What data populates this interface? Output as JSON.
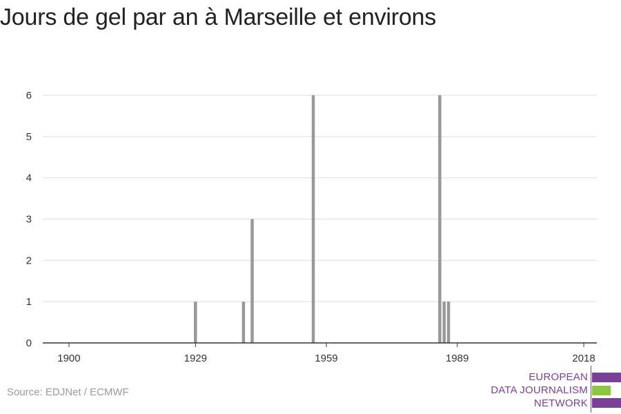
{
  "title": "Jours de gel par an à Marseille et environs",
  "source": "Source: EDJNet / ECMWF",
  "logo": {
    "line1": "EUROPEAN",
    "line2": "DATA JOURNALISM",
    "line3": "NETWORK"
  },
  "colors": {
    "bar": "#999999",
    "grid": "#dddddd",
    "axis": "#333333",
    "logo_purple": "#7a3f98",
    "logo_green": "#8cc63f"
  },
  "chart_data": {
    "type": "bar",
    "title": "Jours de gel par an à Marseille et environs",
    "xlabel": "",
    "ylabel": "",
    "xlim": [
      1894,
      2021
    ],
    "ylim": [
      0,
      6
    ],
    "x_ticks": [
      1900,
      1929,
      1959,
      1989,
      2018
    ],
    "y_ticks": [
      0,
      1,
      2,
      3,
      4,
      5,
      6
    ],
    "grid": true,
    "series": [
      {
        "x": [
          1929,
          1940,
          1942,
          1956,
          1985,
          1986,
          1987
        ],
        "values": [
          1,
          1,
          3,
          6,
          6,
          1,
          1
        ]
      }
    ]
  }
}
